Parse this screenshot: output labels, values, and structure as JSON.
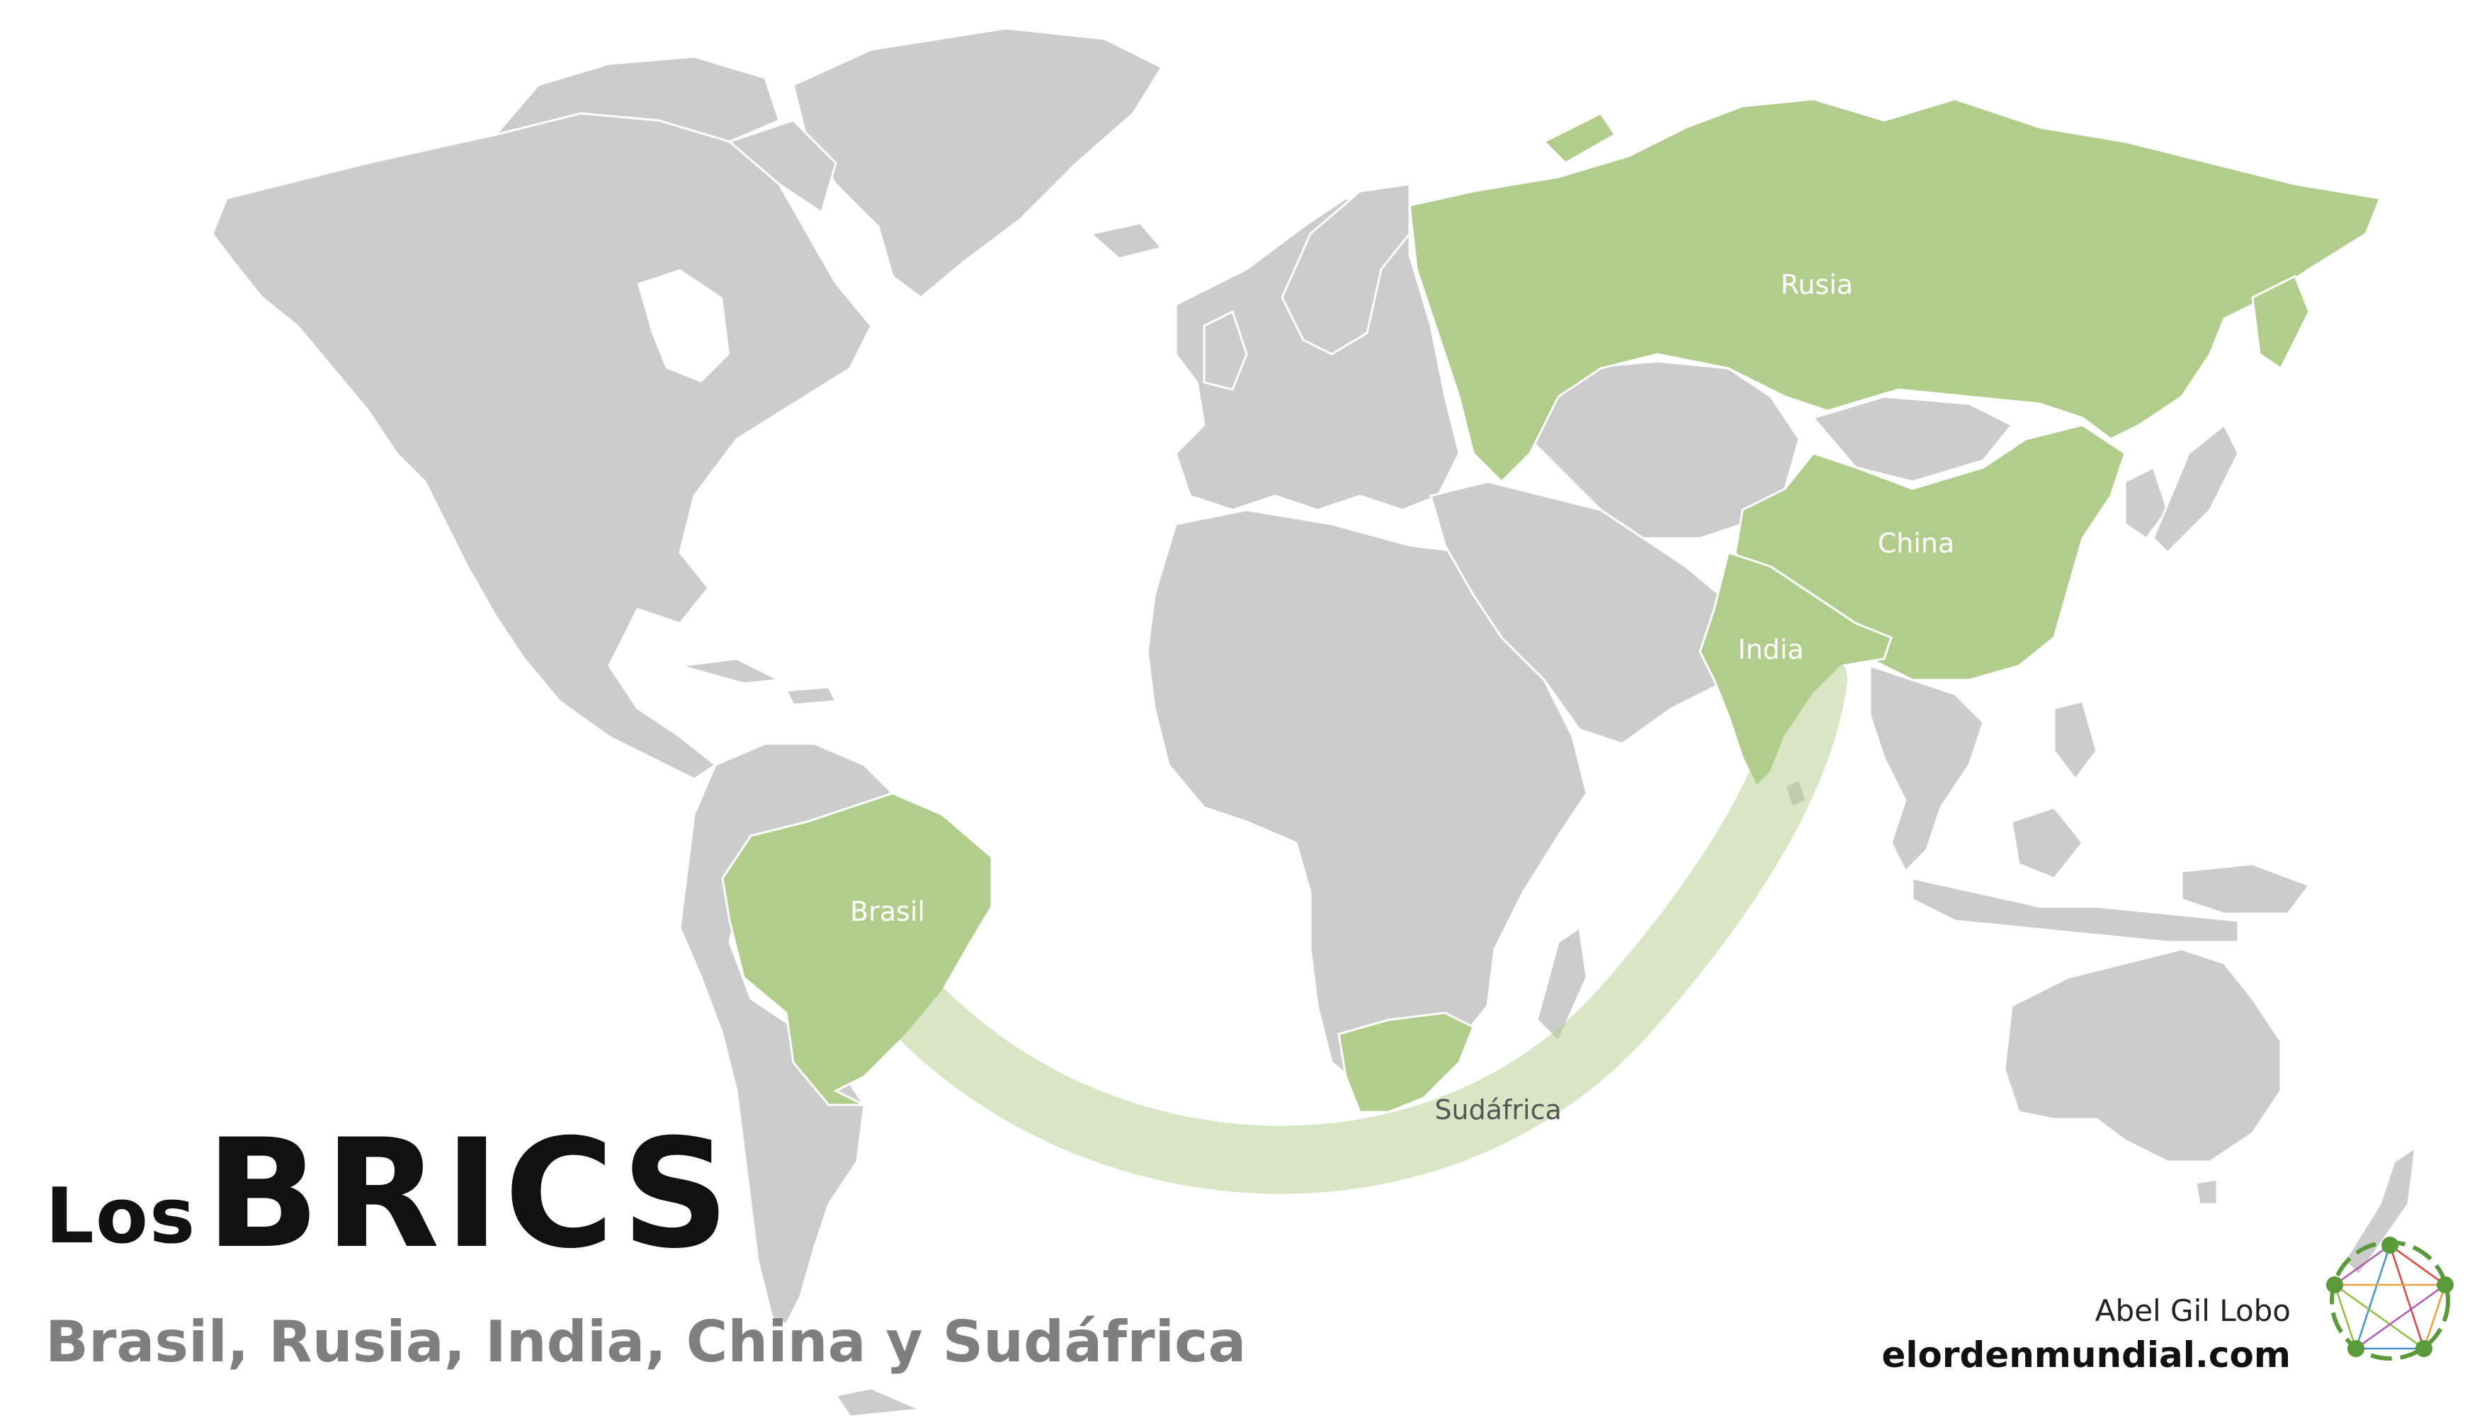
{
  "title": {
    "prefix": "Los",
    "main": "BRICS",
    "subtitle": "Brasil, Rusia, India, China y Sudáfrica"
  },
  "credits": {
    "author": "Abel Gil Lobo",
    "site": "elordenmundial.com"
  },
  "countries": {
    "brasil": "Brasil",
    "rusia": "Rusia",
    "china": "China",
    "india": "India",
    "sudafrica": "Sudáfrica"
  },
  "colors": {
    "land": "#cccccc",
    "brics": "#b1cd8c",
    "background": "#ffffff",
    "title": "#111111",
    "subtitle": "#7f7f7f"
  }
}
